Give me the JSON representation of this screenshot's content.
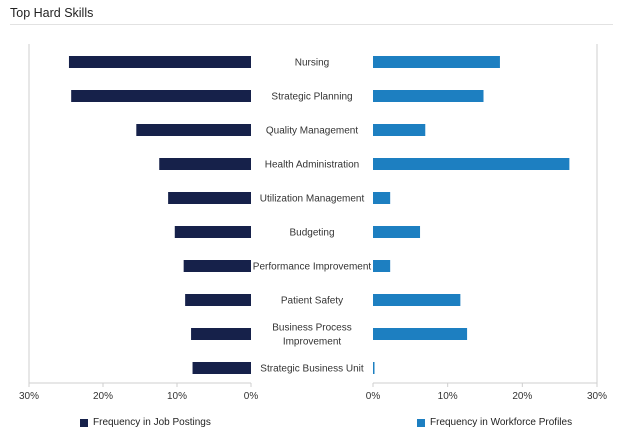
{
  "title": "Top Hard Skills",
  "chart_data": {
    "type": "bar",
    "orientation": "horizontal-butterfly",
    "categories": [
      [
        "Nursing"
      ],
      [
        "Strategic Planning"
      ],
      [
        "Quality Management"
      ],
      [
        "Health Administration"
      ],
      [
        "Utilization Management"
      ],
      [
        "Budgeting"
      ],
      [
        "Performance Improvement"
      ],
      [
        "Patient Safety"
      ],
      [
        "Business Process",
        "Improvement"
      ],
      [
        "Strategic Business Unit"
      ]
    ],
    "series": [
      {
        "name": "Frequency in Job Postings",
        "color": "#16214a",
        "values": [
          24.6,
          24.3,
          15.5,
          12.4,
          11.2,
          10.3,
          9.1,
          8.9,
          8.1,
          7.9
        ]
      },
      {
        "name": "Frequency in Workforce Profiles",
        "color": "#1d7fc1",
        "values": [
          17.0,
          14.8,
          7.0,
          26.3,
          2.3,
          6.3,
          2.3,
          11.7,
          12.6,
          0.2
        ]
      }
    ],
    "axis_range": [
      0,
      30
    ],
    "ticks_left": [
      "30%",
      "20%",
      "10%",
      "0%"
    ],
    "ticks_right": [
      "0%",
      "10%",
      "20%",
      "30%"
    ],
    "grid": false,
    "legend_position": "bottom"
  }
}
